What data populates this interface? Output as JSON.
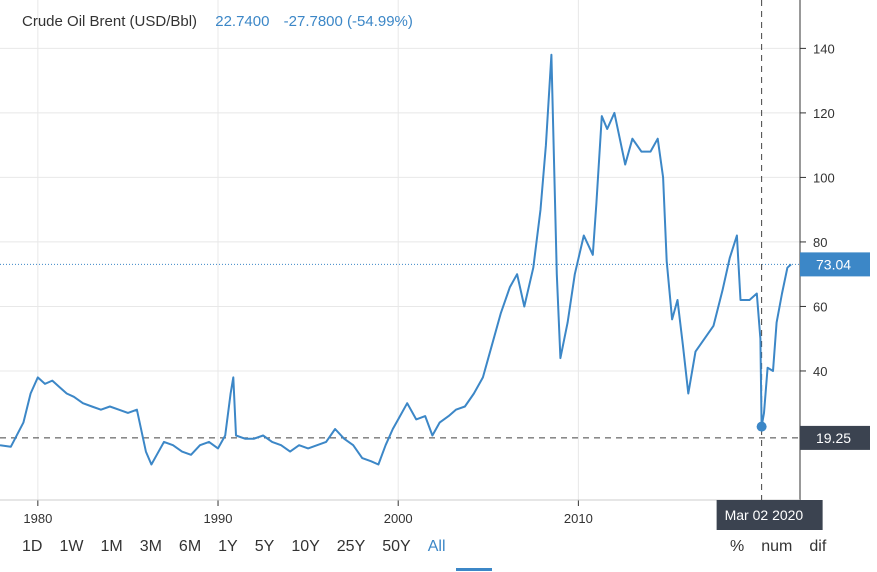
{
  "header": {
    "title": "Crude Oil Brent (USD/Bbl)",
    "last": "22.7400",
    "change": "-27.7800 (-54.99%)"
  },
  "badges": {
    "current_price": "73.04",
    "crosshair_price": "19.25",
    "crosshair_date": "Mar 02 2020"
  },
  "range_buttons": [
    "1D",
    "1W",
    "1M",
    "3M",
    "6M",
    "1Y",
    "5Y",
    "10Y",
    "25Y",
    "50Y",
    "All"
  ],
  "active_range": "All",
  "mode_buttons": [
    "%",
    "num",
    "dif"
  ],
  "colors": {
    "line": "#3c87c7",
    "badge_blue": "#3c87c7",
    "badge_dark": "#3b4350",
    "grid": "#e8e8e8"
  },
  "chart_data": {
    "type": "line",
    "title": "Crude Oil Brent (USD/Bbl)",
    "xlabel": "",
    "ylabel": "",
    "xlim": [
      1977.9,
      2022.3
    ],
    "ylim": [
      0,
      155
    ],
    "x_ticks": [
      1980,
      1990,
      2000,
      2010
    ],
    "x_tick_labels": [
      "1980",
      "1990",
      "2000",
      "2010"
    ],
    "y_ticks": [
      40,
      60,
      80,
      100,
      120,
      140
    ],
    "grid": true,
    "reference_lines": [
      73.04,
      19.25
    ],
    "crosshair_x": 2020.17,
    "marker": {
      "x": 2020.17,
      "y": 22.74
    },
    "series": [
      {
        "x": [
          1977.9,
          1978.5,
          1979.2,
          1979.6,
          1980.0,
          1980.4,
          1980.8,
          1981.2,
          1981.6,
          1982.0,
          1982.5,
          1983.0,
          1983.5,
          1984.0,
          1984.5,
          1985.0,
          1985.5,
          1986.0,
          1986.3,
          1986.6,
          1987.0,
          1987.5,
          1988.0,
          1988.5,
          1989.0,
          1989.5,
          1990.0,
          1990.4,
          1990.7,
          1990.85,
          1991.0,
          1991.5,
          1992.0,
          1992.5,
          1993.0,
          1993.5,
          1994.0,
          1994.5,
          1995.0,
          1995.5,
          1996.0,
          1996.5,
          1997.0,
          1997.5,
          1998.0,
          1998.5,
          1998.9,
          1999.3,
          1999.7,
          2000.0,
          2000.5,
          2001.0,
          2001.5,
          2001.9,
          2002.3,
          2002.8,
          2003.2,
          2003.7,
          2004.2,
          2004.7,
          2005.2,
          2005.7,
          2006.2,
          2006.6,
          2007.0,
          2007.5,
          2007.9,
          2008.2,
          2008.5,
          2008.8,
          2009.0,
          2009.4,
          2009.8,
          2010.3,
          2010.8,
          2011.0,
          2011.3,
          2011.6,
          2012.0,
          2012.3,
          2012.6,
          2013.0,
          2013.5,
          2014.0,
          2014.4,
          2014.7,
          2014.9,
          2015.2,
          2015.5,
          2015.8,
          2016.1,
          2016.5,
          2017.0,
          2017.5,
          2018.0,
          2018.4,
          2018.8,
          2019.0,
          2019.5,
          2019.9,
          2020.1,
          2020.17,
          2020.3,
          2020.5,
          2020.8,
          2021.0,
          2021.3,
          2021.6,
          2021.8
        ],
        "y": [
          17,
          16.5,
          24,
          33,
          38,
          36,
          37,
          35,
          33,
          32,
          30,
          29,
          28,
          29,
          28,
          27,
          28,
          15,
          11,
          14,
          18,
          17,
          15,
          14,
          17,
          18,
          16,
          20,
          33,
          38,
          20,
          19,
          19,
          20,
          18,
          17,
          15,
          17,
          16,
          17,
          18,
          22,
          19,
          17,
          13,
          12,
          11,
          17,
          22,
          25,
          30,
          25,
          26,
          20,
          24,
          26,
          28,
          29,
          33,
          38,
          48,
          58,
          66,
          70,
          60,
          72,
          90,
          110,
          138,
          70,
          44,
          55,
          70,
          82,
          76,
          92,
          119,
          115,
          120,
          112,
          104,
          112,
          108,
          108,
          112,
          100,
          74,
          56,
          62,
          48,
          33,
          46,
          50,
          54,
          65,
          75,
          82,
          62,
          62,
          64,
          50,
          22.74,
          27,
          41,
          40,
          55,
          64,
          72,
          73.04
        ]
      }
    ]
  }
}
